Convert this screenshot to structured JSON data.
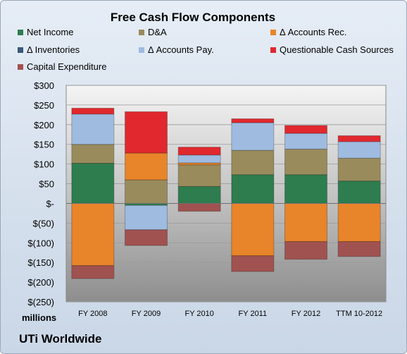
{
  "chart_data": {
    "type": "bar",
    "stacked": true,
    "title": "Free Cash Flow Components",
    "categories": [
      "FY 2008",
      "FY 2009",
      "FY 2010",
      "FY 2011",
      "FY 2012",
      "TTM 10-2012"
    ],
    "series": [
      {
        "name": "Net Income",
        "color": "#2e7d4f",
        "values": [
          102,
          -5,
          43,
          73,
          73,
          57
        ]
      },
      {
        "name": "D&A",
        "color": "#998b5c",
        "values": [
          48,
          60,
          55,
          62,
          65,
          58
        ]
      },
      {
        "name": "Δ Accounts Rec.",
        "color": "#e8842a",
        "values": [
          -158,
          68,
          5,
          -133,
          -97,
          -97
        ]
      },
      {
        "name": "Δ Inventories",
        "color": "#3a5878",
        "values": [
          0,
          0,
          0,
          0,
          0,
          0
        ]
      },
      {
        "name": "Δ Accounts Pay.",
        "color": "#9fbbe0",
        "values": [
          77,
          -62,
          20,
          70,
          40,
          42
        ]
      },
      {
        "name": "Questionable Cash Sources",
        "color": "#e0282e",
        "values": [
          15,
          105,
          20,
          10,
          20,
          15
        ]
      },
      {
        "name": "Capital Expenditure",
        "color": "#a05250",
        "values": [
          -33,
          -40,
          -20,
          -40,
          -45,
          -38
        ]
      }
    ],
    "ylim": [
      -250,
      300
    ],
    "yticks": [
      300,
      250,
      200,
      150,
      100,
      50,
      0,
      -50,
      -100,
      -150,
      -200,
      -250
    ],
    "ytick_labels": [
      "$300",
      "$250",
      "$200",
      "$150",
      "$100",
      "$50",
      "$-",
      "$(50)",
      "$(100)",
      "$(150)",
      "$(200)",
      "$(250)"
    ],
    "ylabel": "millions",
    "grid": true,
    "legend": "top"
  },
  "subtitle": "UTi Worldwide"
}
